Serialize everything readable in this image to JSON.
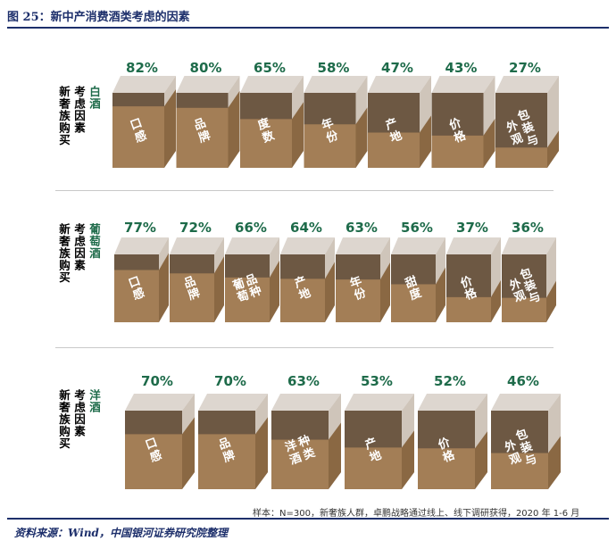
{
  "figure": {
    "title": "图 25：新中产消费酒类考虑的因素",
    "footnote": "样本：N=300，新奢族人群，卓鹏战略通过线上、线下调研获得，2020 年 1-6 月",
    "source": "资料来源：Wind，中国银河证券研究院整理"
  },
  "colors": {
    "fill_front": "#a37e56",
    "fill_side": "#8a6843",
    "empty_front": "#6d5843",
    "empty_side": "#cfc5ba",
    "empty_top": "#ddd6cf",
    "accent_green": "#1e6b4a",
    "title_navy": "#1d2f6b"
  },
  "chart_data": [
    {
      "type": "bar",
      "group_label": [
        "白酒",
        "新奢族购买",
        "考虑因素"
      ],
      "categories": [
        "口感",
        "品牌",
        "度数",
        "年份",
        "产地",
        "价格",
        "外观包装与"
      ],
      "values": [
        82,
        80,
        65,
        58,
        47,
        43,
        27
      ],
      "value_labels": [
        "82%",
        "80%",
        "65%",
        "58%",
        "47%",
        "43%",
        "27%"
      ]
    },
    {
      "type": "bar",
      "group_label": [
        "葡萄酒",
        "新奢族购买",
        "考虑因素"
      ],
      "categories": [
        "口感",
        "品牌",
        "葡萄品种",
        "产地",
        "年份",
        "甜度",
        "价格",
        "外观包装与"
      ],
      "values": [
        77,
        72,
        66,
        64,
        63,
        56,
        37,
        36
      ],
      "value_labels": [
        "77%",
        "72%",
        "66%",
        "64%",
        "63%",
        "56%",
        "37%",
        "36%"
      ]
    },
    {
      "type": "bar",
      "group_label": [
        "洋酒",
        "新奢族购买",
        "考虑因素"
      ],
      "categories": [
        "口感",
        "品牌",
        "洋酒种类",
        "产地",
        "价格",
        "外观包装与"
      ],
      "values": [
        70,
        70,
        63,
        53,
        52,
        46
      ],
      "value_labels": [
        "70%",
        "70%",
        "63%",
        "53%",
        "52%",
        "46%"
      ]
    }
  ]
}
